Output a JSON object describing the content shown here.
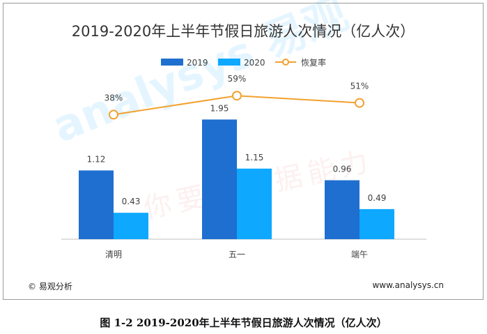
{
  "caption": "图 1-2 2019-2020年上半年节假日旅游人次情况（亿人次）",
  "footer": {
    "source_left": "© 易观分析",
    "source_right": "www.analysys.cn"
  },
  "watermark": {
    "brand": "analysys 易观",
    "slogan": "你要的数据能力"
  },
  "colors": {
    "s2019": "#1E6FD0",
    "s2020": "#0EA8FF",
    "recovery": "#F2A12E",
    "axis": "#BFBFBF",
    "text": "#404040"
  },
  "chart_data": {
    "type": "bar",
    "title": "2019-2020年上半年节假日旅游人次情况（亿人次）",
    "categories": [
      "清明",
      "五一",
      "端午"
    ],
    "series": [
      {
        "name": "2019",
        "type": "bar",
        "values": [
          1.12,
          1.95,
          0.96
        ],
        "labels": [
          "1.12",
          "1.95",
          "0.96"
        ]
      },
      {
        "name": "2020",
        "type": "bar",
        "values": [
          0.43,
          1.15,
          0.49
        ],
        "labels": [
          "0.43",
          "1.15",
          "0.49"
        ]
      },
      {
        "name": "恢复率",
        "type": "line",
        "values": [
          38,
          59,
          51
        ],
        "labels": [
          "38%",
          "59%",
          "51%"
        ]
      }
    ],
    "ylim": [
      0,
      2.5
    ],
    "y2lim": [
      -100,
      70
    ],
    "xlabel": "",
    "ylabel": "",
    "grid": false,
    "legend": "top-center"
  }
}
